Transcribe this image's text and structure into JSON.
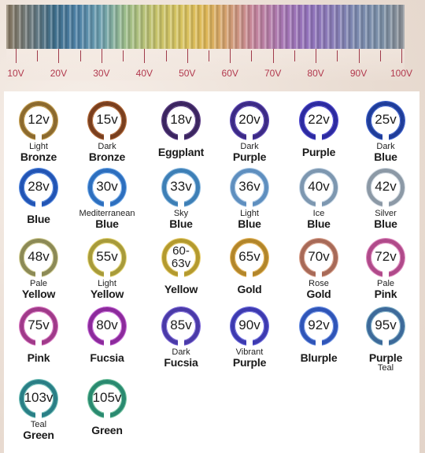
{
  "scale": {
    "ticks": [
      "10V",
      "20V",
      "30V",
      "40V",
      "50V",
      "60V",
      "70V",
      "80V",
      "90V",
      "100V"
    ]
  },
  "rings": [
    {
      "value": "12v",
      "sub": "Light",
      "main": "Bronze",
      "sub2": "",
      "color": "#8c6a2e",
      "color2": "#c9a24f"
    },
    {
      "value": "15v",
      "sub": "Dark",
      "main": "Bronze",
      "sub2": "",
      "color": "#7a3f1e",
      "color2": "#b86a34"
    },
    {
      "value": "18v",
      "sub": "",
      "main": "Eggplant",
      "sub2": "",
      "color": "#3b2560",
      "color2": "#5b3a86"
    },
    {
      "value": "20v",
      "sub": "Dark",
      "main": "Purple",
      "sub2": "",
      "color": "#3c2a86",
      "color2": "#5b43b8"
    },
    {
      "value": "22v",
      "sub": "",
      "main": "Purple",
      "sub2": "",
      "color": "#2c2aa0",
      "color2": "#4d44d2"
    },
    {
      "value": "25v",
      "sub": "Dark",
      "main": "Blue",
      "sub2": "",
      "color": "#1f3d9a",
      "color2": "#3a5fcf"
    },
    {
      "value": "28v",
      "sub": "",
      "main": "Blue",
      "sub2": "",
      "color": "#2255b5",
      "color2": "#4f86e0"
    },
    {
      "value": "30v",
      "sub": "Mediterranean",
      "main": "Blue",
      "sub2": "",
      "color": "#2d6fbf",
      "color2": "#6aa6e8"
    },
    {
      "value": "33v",
      "sub": "Sky",
      "main": "Blue",
      "sub2": "",
      "color": "#3d7fb6",
      "color2": "#8ab9e0"
    },
    {
      "value": "36v",
      "sub": "Light",
      "main": "Blue",
      "sub2": "",
      "color": "#5f8fbf",
      "color2": "#a9c8e6"
    },
    {
      "value": "40v",
      "sub": "Ice",
      "main": "Blue",
      "sub2": "",
      "color": "#7d97b0",
      "color2": "#c9d9e8"
    },
    {
      "value": "42v",
      "sub": "Silver",
      "main": "Blue",
      "sub2": "",
      "color": "#8c99a6",
      "color2": "#d2dae2"
    },
    {
      "value": "48v",
      "sub": "Pale",
      "main": "Yellow",
      "sub2": "",
      "color": "#8c8a56",
      "color2": "#d8d49a"
    },
    {
      "value": "55v",
      "sub": "Light",
      "main": "Yellow",
      "sub2": "",
      "color": "#a89b3a",
      "color2": "#e6d774"
    },
    {
      "value": "60-63v",
      "sub": "",
      "main": "Yellow",
      "sub2": "",
      "color": "#b49a2e",
      "color2": "#ead070"
    },
    {
      "value": "65v",
      "sub": "",
      "main": "Gold",
      "sub2": "",
      "color": "#b3862a",
      "color2": "#e8b75a"
    },
    {
      "value": "70v",
      "sub": "Rose",
      "main": "Gold",
      "sub2": "",
      "color": "#a86a58",
      "color2": "#dba28c"
    },
    {
      "value": "72v",
      "sub": "Pale",
      "main": "Pink",
      "sub2": "",
      "color": "#b04a8a",
      "color2": "#e08ac0"
    },
    {
      "value": "75v",
      "sub": "",
      "main": "Pink",
      "sub2": "",
      "color": "#a03a8a",
      "color2": "#d874c0"
    },
    {
      "value": "80v",
      "sub": "",
      "main": "Fucsia",
      "sub2": "",
      "color": "#8c2a9c",
      "color2": "#c564d6"
    },
    {
      "value": "85v",
      "sub": "Dark",
      "main": "Fucsia",
      "sub2": "",
      "color": "#4a3aa8",
      "color2": "#7a64d8"
    },
    {
      "value": "90v",
      "sub": "Vibrant",
      "main": "Purple",
      "sub2": "",
      "color": "#3d3ab0",
      "color2": "#6d6ce0"
    },
    {
      "value": "92v",
      "sub": "",
      "main": "Blurple",
      "sub2": "",
      "color": "#2f55b8",
      "color2": "#6a8fe6"
    },
    {
      "value": "95v",
      "sub": "",
      "main": "Purple",
      "sub2": "Teal",
      "color": "#3d6a9a",
      "color2": "#7fb0c8"
    },
    {
      "value": "103v",
      "sub": "Teal",
      "main": "Green",
      "sub2": "",
      "color": "#2a7f86",
      "color2": "#6ec0b8"
    },
    {
      "value": "105v",
      "sub": "",
      "main": "Green",
      "sub2": "",
      "color": "#2a8a70",
      "color2": "#74c6a0"
    }
  ]
}
